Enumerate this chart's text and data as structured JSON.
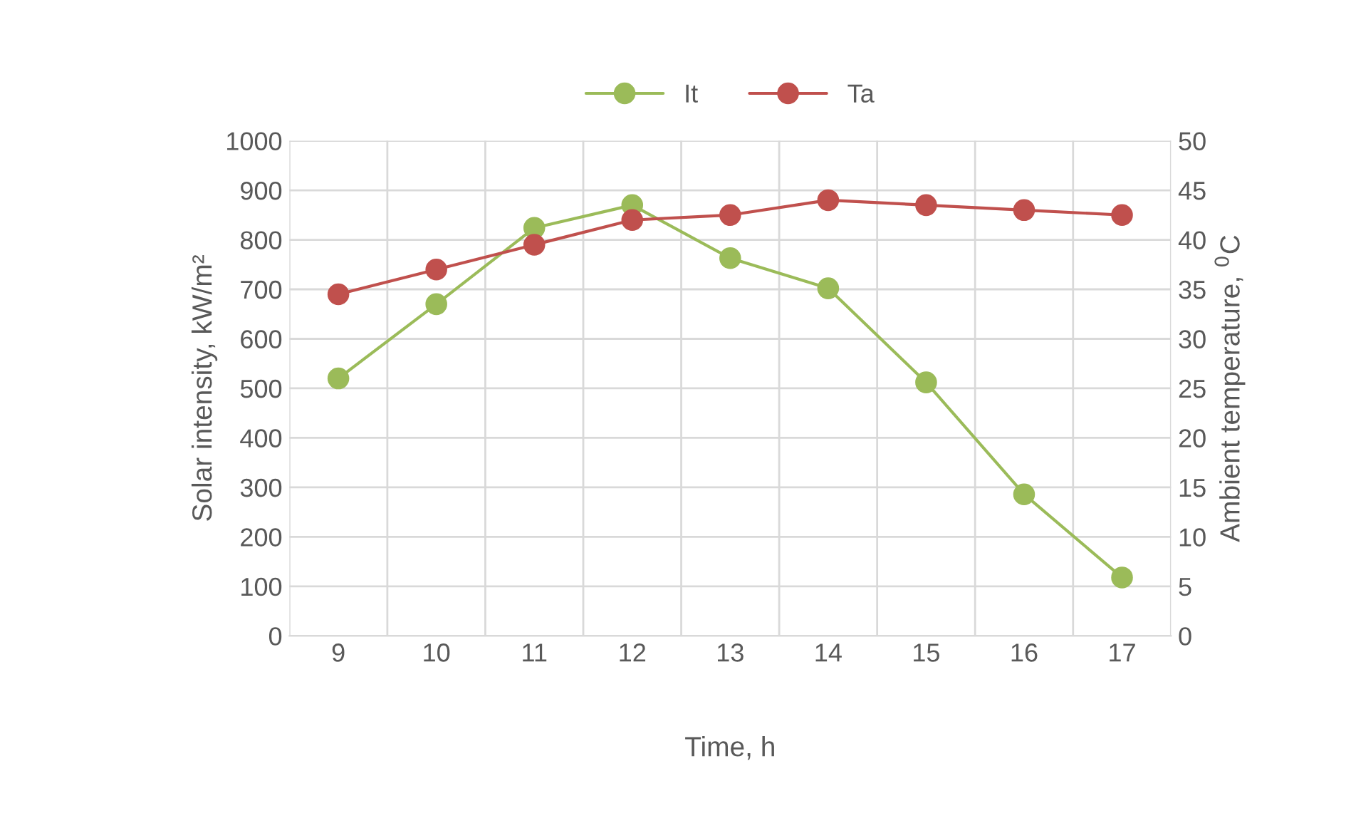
{
  "chart_data": {
    "type": "line",
    "categories": [
      "9",
      "10",
      "11",
      "12",
      "13",
      "14",
      "15",
      "16",
      "17"
    ],
    "xlabel": "Time, h",
    "ylabel": "Solar intensity, kW/m²",
    "y2label": "Ambient temperature, $^{0}$C",
    "series": [
      {
        "name": "It",
        "color": "#9bbb59",
        "values": [
          520,
          670,
          824,
          870,
          763,
          702,
          512,
          286,
          118
        ]
      },
      {
        "name": "Ta",
        "color": "#c0504d",
        "axis": "y2",
        "values": [
          34.5,
          37,
          39.5,
          42,
          42.5,
          44,
          43.5,
          43,
          42.5
        ]
      }
    ],
    "ylim": [
      0,
      1000
    ],
    "yticks": [
      0,
      100,
      200,
      300,
      400,
      500,
      600,
      700,
      800,
      900,
      1000
    ],
    "y2lim": [
      0,
      50
    ],
    "y2ticks": [
      0,
      5,
      10,
      15,
      20,
      25,
      30,
      35,
      40,
      45,
      50
    ],
    "grid": true,
    "legend": "top",
    "marker": "circle",
    "line_style": "solid"
  }
}
